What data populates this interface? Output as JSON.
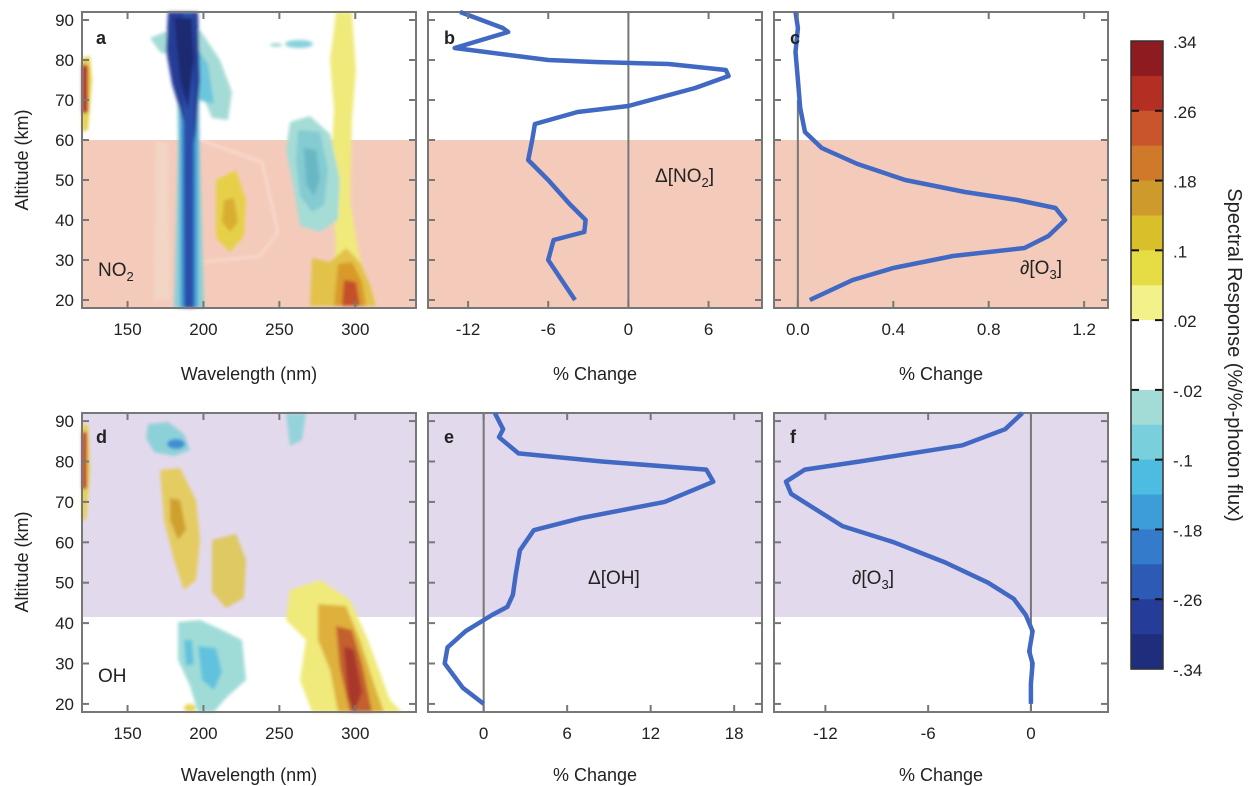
{
  "chart_data": [
    {
      "panel": "a",
      "type": "heatmap",
      "xlabel": "Wavelength (nm)",
      "ylabel": "Altitude (km)",
      "xlim": [
        120,
        340
      ],
      "ylim": [
        18,
        92
      ],
      "x_ticks": [
        150,
        200,
        250,
        300
      ],
      "y_ticks": [
        20,
        30,
        40,
        50,
        60,
        70,
        80,
        90
      ],
      "annotation": "NO2",
      "annotation_main": "NO",
      "annotation_sub": "2",
      "shaded_band": {
        "altitude_range": [
          18,
          60
        ],
        "color": "#f4c9b8"
      },
      "features": [
        {
          "wavelength_center": 188,
          "altitude_range": [
            18,
            92
          ],
          "response": -0.34
        },
        {
          "wavelength_center": 188,
          "altitude_range": [
            18,
            58
          ],
          "response": -0.02
        },
        {
          "wavelength_center": 200,
          "altitude_range": [
            65,
            90
          ],
          "response": -0.1
        },
        {
          "wavelength_center": 270,
          "altitude_range": [
            38,
            65
          ],
          "response": -0.1
        },
        {
          "wavelength_center": 284,
          "altitude_range": [
            83,
            84
          ],
          "response": -0.1
        },
        {
          "wavelength_center": 220,
          "altitude_range": [
            36,
            50
          ],
          "response": 0.1
        },
        {
          "wavelength_center": 305,
          "altitude_range": [
            18,
            92
          ],
          "response": 0.02
        },
        {
          "wavelength_center": 300,
          "altitude_range": [
            18,
            35
          ],
          "response": 0.26
        },
        {
          "wavelength_center": 120,
          "altitude_range": [
            68,
            80
          ],
          "response": 0.34
        }
      ]
    },
    {
      "panel": "b",
      "type": "line",
      "xlabel": "% Change",
      "xlim": [
        -15,
        10
      ],
      "ylim": [
        18,
        92
      ],
      "x_ticks": [
        -12,
        -6,
        0,
        6
      ],
      "annotation": "Δ[NO2]",
      "annotation_main": "Δ[NO",
      "annotation_sub": "2",
      "annotation_close": "]",
      "reference_line_x": 0,
      "reference_line_range": [
        18,
        92
      ],
      "shaded_band": {
        "altitude_range": [
          18,
          60
        ],
        "color": "#f4c9b8"
      },
      "series": [
        {
          "x": [
            -4,
            -5,
            -6,
            -5.6,
            -3.3,
            -3.2,
            -4.4,
            -6,
            -7.5,
            -7.2,
            -7,
            -3.8,
            0,
            5,
            7.5,
            7.3,
            3,
            -2.5,
            -6,
            -13,
            -9,
            -9.4,
            -12.6
          ],
          "y": [
            20,
            25,
            30,
            35,
            37,
            40,
            44,
            50,
            55,
            60,
            64,
            67,
            68.5,
            73,
            76,
            77.5,
            79,
            79.5,
            80,
            83,
            87,
            88,
            92
          ]
        }
      ]
    },
    {
      "panel": "c",
      "type": "line",
      "xlabel": "% Change",
      "xlim": [
        -0.1,
        1.3
      ],
      "ylim": [
        18,
        92
      ],
      "x_ticks": [
        0.0,
        0.4,
        0.8,
        1.2
      ],
      "annotation": "∂[O3]",
      "annotation_main": "∂[O",
      "annotation_sub": "3",
      "annotation_close": "]",
      "reference_line_x": 0,
      "reference_line_range": [
        18,
        70
      ],
      "shaded_band": {
        "altitude_range": [
          18,
          60
        ],
        "color": "#f4c9b8"
      },
      "series": [
        {
          "x": [
            0.05,
            0.23,
            0.4,
            0.65,
            0.95,
            1.05,
            1.12,
            1.08,
            0.92,
            0.7,
            0.45,
            0.25,
            0.1,
            0.03,
            0.01,
            0.0,
            -0.01,
            0.0,
            -0.01
          ],
          "y": [
            20,
            25,
            28,
            31,
            33,
            36,
            40,
            43,
            45,
            47,
            50,
            54,
            58,
            62,
            68,
            75,
            82,
            88,
            92
          ]
        }
      ]
    },
    {
      "panel": "d",
      "type": "heatmap",
      "xlabel": "Wavelength (nm)",
      "ylabel": "Altitude (km)",
      "xlim": [
        120,
        340
      ],
      "ylim": [
        18,
        92
      ],
      "x_ticks": [
        150,
        200,
        250,
        300
      ],
      "y_ticks": [
        20,
        30,
        40,
        50,
        60,
        70,
        80,
        90
      ],
      "annotation": "OH",
      "shaded_band": {
        "altitude_range": [
          43,
          92
        ],
        "color": "#e2d8ec"
      },
      "features": [
        {
          "wavelength_center": 180,
          "altitude_range": [
            80,
            86
          ],
          "response": -0.1
        },
        {
          "wavelength_center": 275,
          "altitude_range": [
            82,
            92
          ],
          "response": -0.02
        },
        {
          "wavelength_center": 185,
          "altitude_range": [
            20,
            39
          ],
          "response": -0.1
        },
        {
          "wavelength_center": 210,
          "altitude_range": [
            20,
            37
          ],
          "response": -0.1
        },
        {
          "wavelength_center": 180,
          "altitude_range": [
            55,
            76
          ],
          "response": 0.1
        },
        {
          "wavelength_center": 220,
          "altitude_range": [
            48,
            64
          ],
          "response": 0.02
        },
        {
          "wavelength_center": 300,
          "altitude_range": [
            18,
            48
          ],
          "response": 0.1
        },
        {
          "wavelength_center": 305,
          "altitude_range": [
            20,
            38
          ],
          "response": 0.26
        },
        {
          "wavelength_center": 120,
          "altitude_range": [
            65,
            80
          ],
          "response": 0.34
        }
      ]
    },
    {
      "panel": "e",
      "type": "line",
      "xlabel": "% Change",
      "xlim": [
        -4,
        20
      ],
      "ylim": [
        18,
        92
      ],
      "x_ticks": [
        0,
        6,
        12,
        18
      ],
      "annotation": "Δ[OH]",
      "reference_line_x": 0,
      "reference_line_range": [
        18,
        92
      ],
      "shaded_band": {
        "altitude_range": [
          43,
          92
        ],
        "color": "#e2d8ec"
      },
      "series": [
        {
          "x": [
            0,
            -1.5,
            -2.8,
            -2.6,
            -1.3,
            0.6,
            1.7,
            2.1,
            2.3,
            2.6,
            3.6,
            7,
            13,
            16.5,
            16,
            8.5,
            2.5,
            1.1,
            1.4,
            0.8
          ],
          "y": [
            20,
            24,
            30,
            34,
            38,
            42,
            44,
            47,
            52,
            58,
            63,
            66,
            70,
            75,
            78,
            80,
            82,
            86,
            88,
            92
          ]
        }
      ]
    },
    {
      "panel": "f",
      "type": "line",
      "xlabel": "% Change",
      "xlim": [
        -15,
        4.5
      ],
      "ylim": [
        18,
        92
      ],
      "x_ticks": [
        -12,
        -6,
        0
      ],
      "annotation": "∂[O3]",
      "annotation_main": "∂[O",
      "annotation_sub": "3",
      "annotation_close": "]",
      "reference_line_x": 0,
      "reference_line_range": [
        18,
        92
      ],
      "shaded_band": {
        "altitude_range": [
          43,
          92
        ],
        "color": "#e2d8ec"
      },
      "series": [
        {
          "x": [
            0,
            0,
            0.1,
            -0.1,
            0.1,
            -0.3,
            -1,
            -2.5,
            -5,
            -8,
            -11,
            -12.5,
            -14,
            -14.3,
            -13.2,
            -10,
            -4,
            -1.5,
            -0.5
          ],
          "y": [
            20,
            25,
            30,
            33,
            38,
            42,
            46,
            50,
            55,
            60,
            64,
            68,
            72,
            75,
            78,
            80,
            84,
            88,
            92
          ]
        }
      ]
    }
  ],
  "colorbar": {
    "title": "Spectral Response (%/%-photon flux)",
    "tick_labels": [
      ".34",
      ".26",
      ".18",
      ".1",
      ".02",
      "-.02",
      "-.1",
      "-.18",
      "-.26",
      "-.34"
    ],
    "colors": [
      "#8e1b1f",
      "#b32f24",
      "#c9552a",
      "#cf7a2a",
      "#cf9a2c",
      "#d9bf2a",
      "#e6dc44",
      "#f2f18a",
      "#ffffff",
      "#ffffff",
      "#a3dbd6",
      "#7acfdc",
      "#4cbde0",
      "#3d9dd9",
      "#347bcb",
      "#2d5ab4",
      "#253d98",
      "#1f2e7c"
    ]
  }
}
